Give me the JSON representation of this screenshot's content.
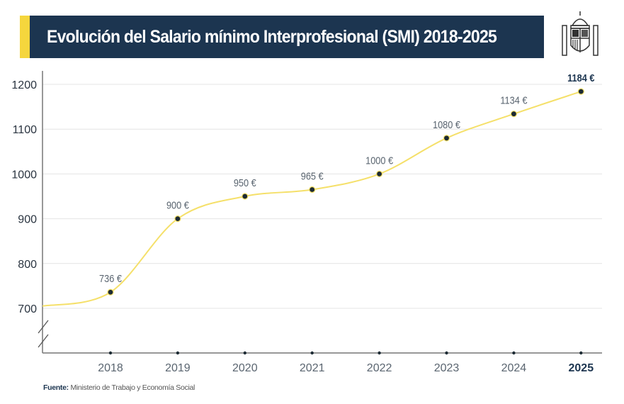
{
  "header": {
    "title": "Evolución del Salario mínimo Interprofesional (SMI) 2018-2025",
    "accent_color": "#f5d63d",
    "bar_color": "#1c3550",
    "logo": "coat-of-arms-of-spain"
  },
  "source": {
    "label": "Fuente:",
    "text": "Ministerio de Trabajo y Economía Social"
  },
  "chart_data": {
    "type": "line",
    "title": "Evolución del Salario mínimo Interprofesional (SMI) 2018-2025",
    "categories": [
      "2018",
      "2019",
      "2020",
      "2021",
      "2022",
      "2023",
      "2024",
      "2025"
    ],
    "values": [
      736,
      900,
      950,
      965,
      1000,
      1080,
      1134,
      1184
    ],
    "data_labels": [
      "736 €",
      "900 €",
      "950 €",
      "965 €",
      "1000 €",
      "1080 €",
      "1134 €",
      "1184 €"
    ],
    "yticks": [
      700,
      800,
      900,
      1000,
      1100,
      1200
    ],
    "ylim": [
      700,
      1200
    ],
    "axis_break": true,
    "grid": "horizontal",
    "line_color": "#f5e06a",
    "marker_color": "#1c2a33",
    "highlight": "2025"
  }
}
